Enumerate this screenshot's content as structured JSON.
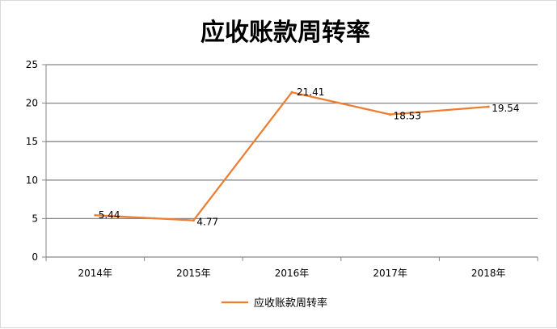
{
  "chart_data": {
    "type": "line",
    "title": "应收账款周转率",
    "categories": [
      "2014年",
      "2015年",
      "2016年",
      "2017年",
      "2018年"
    ],
    "series": [
      {
        "name": "应收账款周转率",
        "values": [
          5.44,
          4.77,
          21.41,
          18.53,
          19.54
        ]
      }
    ],
    "data_labels": [
      "5.44",
      "4.77",
      "21.41",
      "18.53",
      "19.54"
    ],
    "ylim": [
      0,
      25
    ],
    "yticks": [
      "0",
      "5",
      "10",
      "15",
      "20",
      "25"
    ],
    "xlabel": "",
    "ylabel": "",
    "grid": true,
    "legend_position": "bottom",
    "colors": {
      "line": "#ED7D31",
      "grid": "#868686",
      "axis": "#868686"
    }
  }
}
